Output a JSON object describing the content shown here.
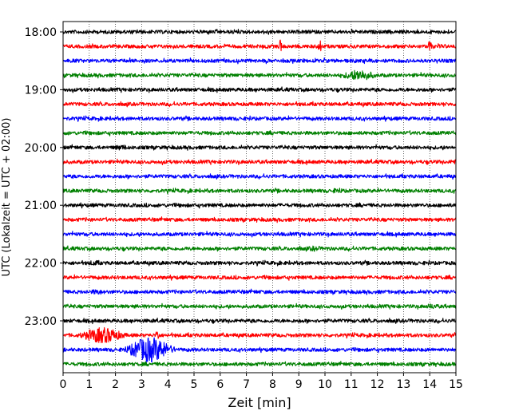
{
  "chart_data": {
    "type": "line",
    "title": "",
    "xlabel": "Zeit  [min]",
    "ylabel": "UTC (Lokalzeit = UTC + 02:00)",
    "xlim": [
      0,
      15
    ],
    "x_ticks": [
      0,
      1,
      2,
      3,
      4,
      5,
      6,
      7,
      8,
      9,
      10,
      11,
      12,
      13,
      14,
      15
    ],
    "y_tick_labels": [
      "18:00",
      "19:00",
      "20:00",
      "21:00",
      "22:00",
      "23:00"
    ],
    "grid": "vertical dotted lines at each minute",
    "trace_interval_min": 15,
    "traces": [
      {
        "start": "18:00",
        "color": "#000000",
        "events": []
      },
      {
        "start": "18:15",
        "color": "#ff0000",
        "events": [
          {
            "t": 8.3,
            "amp": "spike"
          },
          {
            "t": 9.8,
            "amp": "spike"
          },
          {
            "t": 14.0,
            "amp": "spike"
          }
        ]
      },
      {
        "start": "18:30",
        "color": "#0000ff",
        "events": []
      },
      {
        "start": "18:45",
        "color": "#008000",
        "events": [
          {
            "t": 11.3,
            "amp": "medium"
          }
        ]
      },
      {
        "start": "19:00",
        "color": "#000000",
        "events": []
      },
      {
        "start": "19:15",
        "color": "#ff0000",
        "events": []
      },
      {
        "start": "19:30",
        "color": "#0000ff",
        "events": []
      },
      {
        "start": "19:45",
        "color": "#008000",
        "events": []
      },
      {
        "start": "20:00",
        "color": "#000000",
        "events": [
          {
            "t": 2.2,
            "amp": "small"
          }
        ]
      },
      {
        "start": "20:15",
        "color": "#ff0000",
        "events": [
          {
            "t": 15.0,
            "amp": "small"
          }
        ]
      },
      {
        "start": "20:30",
        "color": "#0000ff",
        "events": []
      },
      {
        "start": "20:45",
        "color": "#008000",
        "events": [
          {
            "t": 10.5,
            "amp": "small"
          }
        ]
      },
      {
        "start": "21:00",
        "color": "#000000",
        "events": []
      },
      {
        "start": "21:15",
        "color": "#ff0000",
        "events": []
      },
      {
        "start": "21:30",
        "color": "#0000ff",
        "events": []
      },
      {
        "start": "21:45",
        "color": "#008000",
        "events": [
          {
            "t": 9.6,
            "amp": "small"
          }
        ]
      },
      {
        "start": "22:00",
        "color": "#000000",
        "events": [
          {
            "t": 1.2,
            "amp": "small"
          }
        ]
      },
      {
        "start": "22:15",
        "color": "#ff0000",
        "events": []
      },
      {
        "start": "22:30",
        "color": "#0000ff",
        "events": [
          {
            "t": 1.3,
            "amp": "small"
          }
        ]
      },
      {
        "start": "22:45",
        "color": "#008000",
        "events": [
          {
            "t": 14.1,
            "amp": "small"
          }
        ]
      },
      {
        "start": "23:00",
        "color": "#000000",
        "events": []
      },
      {
        "start": "23:15",
        "color": "#ff0000",
        "events": [
          {
            "t": 1.5,
            "amp": "large"
          },
          {
            "t": 3.6,
            "amp": "spike"
          }
        ]
      },
      {
        "start": "23:30",
        "color": "#0000ff",
        "events": [
          {
            "t": 3.3,
            "amp": "very large"
          }
        ]
      },
      {
        "start": "23:45",
        "color": "#008000",
        "events": []
      }
    ]
  }
}
